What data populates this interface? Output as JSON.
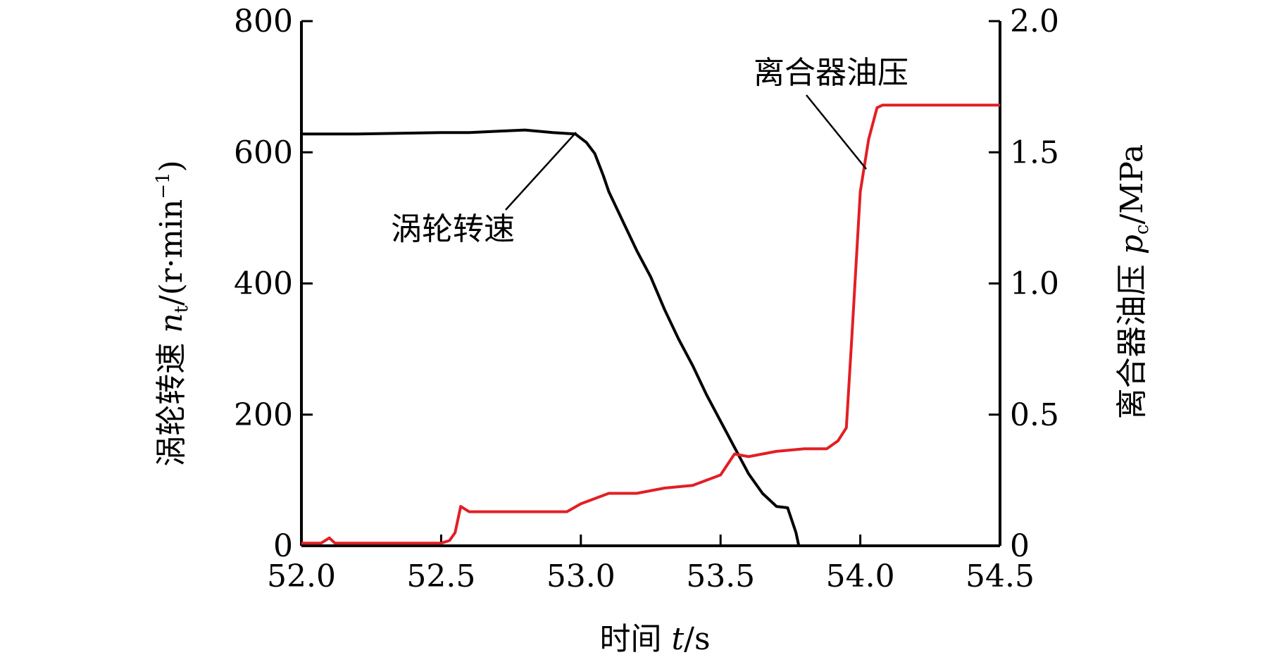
{
  "chart_data": {
    "type": "line",
    "xlabel": "时间 t/s",
    "ylabel_left": "涡轮转速 nt/(r·min⁻¹)",
    "ylabel_right": "离合器油压 pc/MPa",
    "xlim": [
      52.0,
      54.5
    ],
    "ylim_left": [
      0,
      800
    ],
    "ylim_right": [
      0,
      2.0
    ],
    "x_ticks": [
      "52.0",
      "52.5",
      "53.0",
      "53.5",
      "54.0",
      "54.5"
    ],
    "y_left_ticks": [
      "0",
      "200",
      "400",
      "600",
      "800"
    ],
    "y_right_ticks": [
      "0",
      "0.5",
      "1.0",
      "1.5",
      "2.0"
    ],
    "grid": false,
    "series": [
      {
        "name": "涡轮转速",
        "axis": "left",
        "color": "#000000",
        "x": [
          52.0,
          52.2,
          52.5,
          52.6,
          52.7,
          52.8,
          52.9,
          52.98,
          53.02,
          53.05,
          53.08,
          53.1,
          53.15,
          53.2,
          53.25,
          53.3,
          53.35,
          53.4,
          53.45,
          53.5,
          53.55,
          53.6,
          53.65,
          53.7,
          53.74,
          53.77,
          53.78,
          54.5
        ],
        "y": [
          628,
          628,
          630,
          630,
          632,
          634,
          630,
          628,
          615,
          598,
          565,
          540,
          495,
          450,
          410,
          360,
          315,
          275,
          230,
          190,
          150,
          110,
          80,
          60,
          58,
          20,
          0,
          0
        ]
      },
      {
        "name": "离合器油压",
        "axis": "right",
        "color": "#e31e24",
        "x": [
          52.0,
          52.07,
          52.1,
          52.12,
          52.5,
          52.53,
          52.55,
          52.57,
          52.6,
          52.7,
          52.95,
          53.0,
          53.1,
          53.2,
          53.3,
          53.4,
          53.5,
          53.55,
          53.6,
          53.7,
          53.8,
          53.88,
          53.92,
          53.95,
          53.97,
          54.0,
          54.03,
          54.06,
          54.08,
          54.5
        ],
        "y": [
          0.01,
          0.01,
          0.03,
          0.01,
          0.01,
          0.02,
          0.05,
          0.15,
          0.13,
          0.13,
          0.13,
          0.16,
          0.2,
          0.2,
          0.22,
          0.23,
          0.27,
          0.35,
          0.34,
          0.36,
          0.37,
          0.37,
          0.4,
          0.45,
          0.8,
          1.35,
          1.55,
          1.67,
          1.68,
          1.68
        ]
      }
    ],
    "annotations": [
      {
        "text": "涡轮转速",
        "series": "涡轮转速"
      },
      {
        "text": "离合器油压",
        "series": "离合器油压"
      }
    ]
  },
  "labels": {
    "ylabel_left_main": "涡轮转速 ",
    "ylabel_left_var": "n",
    "ylabel_left_sub": "t",
    "ylabel_left_unit": "/(r·min",
    "ylabel_left_exp": "−1",
    "ylabel_left_close": ")",
    "ylabel_right_main": "离合器油压 ",
    "ylabel_right_var": "p",
    "ylabel_right_sub": "c",
    "ylabel_right_unit": "/MPa",
    "xlabel_main": "时间 ",
    "xlabel_var": "t",
    "xlabel_unit": "/s"
  }
}
